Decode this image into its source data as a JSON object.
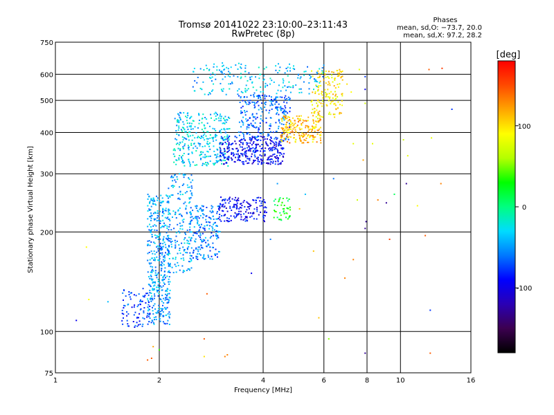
{
  "colors": {
    "frame": "#000000",
    "colorbar_stops": [
      "#000000",
      "#3c0050",
      "#2a00b4",
      "#0000ff",
      "#0078ff",
      "#00dcff",
      "#00ff80",
      "#00ff00",
      "#b4ff00",
      "#ffff00",
      "#ffa500",
      "#ff4a00",
      "#ff0000"
    ]
  },
  "chart_data": {
    "type": "scatter",
    "title": "Tromsø 20141022 23:10:00–23:11:43",
    "subtitle": "RwPretec (8p)",
    "xlabel": "Frequency [MHz]",
    "ylabel": "Stationary phase Virtual Height [km]",
    "xscale": "log",
    "yscale": "log",
    "xlim": [
      1,
      16
    ],
    "ylim": [
      75,
      750
    ],
    "xticks": [
      1,
      2,
      4,
      6,
      8,
      10,
      16
    ],
    "yticks": [
      75,
      100,
      200,
      300,
      400,
      500,
      600,
      750
    ],
    "grid": true,
    "stats": {
      "heading": "Phases",
      "line_o": "mean, sd,O: −73.7, 20.0",
      "line_x": "mean, sd,X:  97.2, 28.2"
    },
    "colorbar": {
      "label": "[deg]",
      "range": [
        -180,
        180
      ],
      "ticks": [
        100,
        0,
        -100
      ]
    },
    "clusters": [
      {
        "x": [
          1.85,
          2.15
        ],
        "y": [
          105,
          260
        ],
        "phase": -50,
        "count": 420
      },
      {
        "x": [
          1.55,
          1.9
        ],
        "y": [
          103,
          135
        ],
        "phase": -75,
        "count": 90
      },
      {
        "x": [
          2.1,
          2.5
        ],
        "y": [
          150,
          300
        ],
        "phase": -45,
        "count": 190
      },
      {
        "x": [
          2.45,
          3.0
        ],
        "y": [
          165,
          240
        ],
        "phase": -60,
        "count": 200
      },
      {
        "x": [
          2.95,
          4.1
        ],
        "y": [
          215,
          255
        ],
        "phase": -95,
        "count": 160
      },
      {
        "x": [
          4.3,
          4.8
        ],
        "y": [
          215,
          255
        ],
        "phase": 25,
        "count": 45
      },
      {
        "x": [
          2.2,
          3.2
        ],
        "y": [
          315,
          460
        ],
        "phase": -35,
        "count": 340
      },
      {
        "x": [
          3.0,
          4.6
        ],
        "y": [
          320,
          390
        ],
        "phase": -95,
        "count": 330
      },
      {
        "x": [
          3.4,
          4.8
        ],
        "y": [
          380,
          520
        ],
        "phase": -65,
        "count": 250
      },
      {
        "x": [
          4.5,
          5.9
        ],
        "y": [
          370,
          450
        ],
        "phase": 120,
        "count": 200
      },
      {
        "x": [
          5.5,
          6.8
        ],
        "y": [
          440,
          620
        ],
        "phase": 105,
        "count": 150
      },
      {
        "x": [
          2.5,
          6.0
        ],
        "y": [
          520,
          650
        ],
        "phase": -40,
        "count": 200
      }
    ],
    "points": [
      {
        "x": 1.15,
        "y": 108,
        "phase": -100
      },
      {
        "x": 1.23,
        "y": 180,
        "phase": 100
      },
      {
        "x": 1.25,
        "y": 125,
        "phase": 100
      },
      {
        "x": 1.42,
        "y": 123,
        "phase": -40
      },
      {
        "x": 1.85,
        "y": 82,
        "phase": 150
      },
      {
        "x": 1.9,
        "y": 83,
        "phase": 150
      },
      {
        "x": 1.92,
        "y": 90,
        "phase": 130
      },
      {
        "x": 2.0,
        "y": 88,
        "phase": 40
      },
      {
        "x": 2.7,
        "y": 84,
        "phase": 110
      },
      {
        "x": 3.1,
        "y": 84,
        "phase": 140
      },
      {
        "x": 3.15,
        "y": 85,
        "phase": 140
      },
      {
        "x": 2.75,
        "y": 130,
        "phase": 150
      },
      {
        "x": 3.7,
        "y": 150,
        "phase": -100
      },
      {
        "x": 4.6,
        "y": 235,
        "phase": 40
      },
      {
        "x": 5.1,
        "y": 235,
        "phase": 120
      },
      {
        "x": 5.6,
        "y": 175,
        "phase": 120
      },
      {
        "x": 5.8,
        "y": 110,
        "phase": 120
      },
      {
        "x": 6.2,
        "y": 95,
        "phase": 60
      },
      {
        "x": 6.9,
        "y": 145,
        "phase": 140
      },
      {
        "x": 7.3,
        "y": 165,
        "phase": 140
      },
      {
        "x": 7.5,
        "y": 250,
        "phase": 80
      },
      {
        "x": 7.9,
        "y": 205,
        "phase": -130
      },
      {
        "x": 7.95,
        "y": 215,
        "phase": -130
      },
      {
        "x": 7.8,
        "y": 330,
        "phase": 130
      },
      {
        "x": 7.3,
        "y": 370,
        "phase": 90
      },
      {
        "x": 7.9,
        "y": 86,
        "phase": -130
      },
      {
        "x": 8.3,
        "y": 370,
        "phase": 90
      },
      {
        "x": 8.6,
        "y": 250,
        "phase": 140
      },
      {
        "x": 9.1,
        "y": 245,
        "phase": -130
      },
      {
        "x": 9.3,
        "y": 190,
        "phase": 160
      },
      {
        "x": 9.6,
        "y": 260,
        "phase": 10
      },
      {
        "x": 10.2,
        "y": 380,
        "phase": 80
      },
      {
        "x": 10.4,
        "y": 280,
        "phase": -130
      },
      {
        "x": 10.5,
        "y": 340,
        "phase": 90
      },
      {
        "x": 11.2,
        "y": 240,
        "phase": 100
      },
      {
        "x": 11.8,
        "y": 195,
        "phase": 150
      },
      {
        "x": 12.1,
        "y": 620,
        "phase": 150
      },
      {
        "x": 12.3,
        "y": 385,
        "phase": 90
      },
      {
        "x": 12.2,
        "y": 116,
        "phase": -80
      },
      {
        "x": 12.2,
        "y": 86,
        "phase": 150
      },
      {
        "x": 13.1,
        "y": 280,
        "phase": 140
      },
      {
        "x": 13.2,
        "y": 625,
        "phase": 160
      },
      {
        "x": 14.1,
        "y": 470,
        "phase": -80
      },
      {
        "x": 7.9,
        "y": 590,
        "phase": -80
      },
      {
        "x": 7.9,
        "y": 540,
        "phase": -100
      },
      {
        "x": 7.9,
        "y": 490,
        "phase": 80
      },
      {
        "x": 7.2,
        "y": 530,
        "phase": 100
      },
      {
        "x": 7.0,
        "y": 560,
        "phase": 110
      },
      {
        "x": 7.6,
        "y": 620,
        "phase": 90
      },
      {
        "x": 6.4,
        "y": 290,
        "phase": -60
      },
      {
        "x": 5.3,
        "y": 260,
        "phase": -40
      },
      {
        "x": 4.4,
        "y": 280,
        "phase": -50
      },
      {
        "x": 4.2,
        "y": 190,
        "phase": -60
      },
      {
        "x": 2.7,
        "y": 95,
        "phase": 150
      }
    ]
  }
}
